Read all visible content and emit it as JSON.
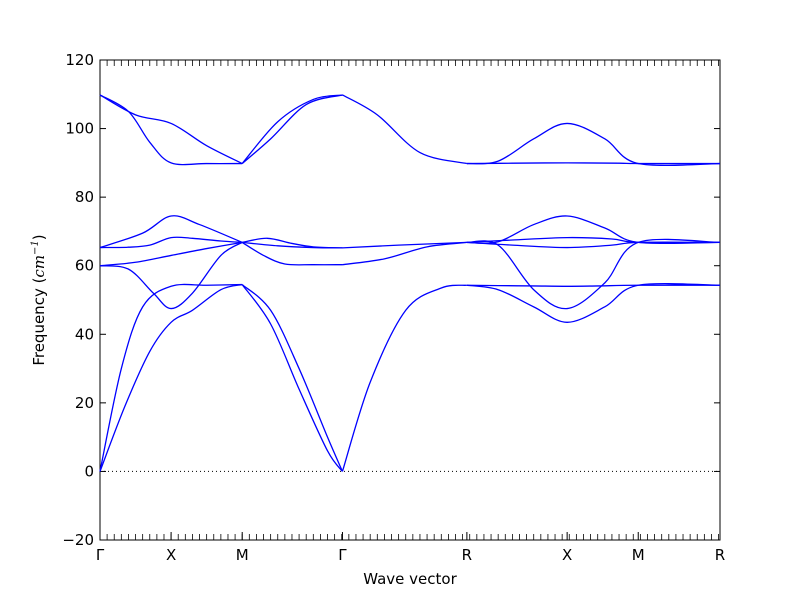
{
  "chart_data": {
    "type": "line",
    "xlabel": "Wave vector",
    "ylabel_main": "Frequency (",
    "ylabel_unit": "cm",
    "ylabel_exp": "−1",
    "ylabel_close": ")",
    "ylim": [
      -20,
      120
    ],
    "yticks": [
      -20,
      0,
      20,
      40,
      60,
      80,
      100,
      120
    ],
    "ytick_labels": [
      "−20",
      "0",
      "20",
      "40",
      "60",
      "80",
      "100",
      "120"
    ],
    "xlim": [
      0,
      8.72
    ],
    "high_symmetry_points": [
      {
        "label": "Γ",
        "x": 0
      },
      {
        "label": "X",
        "x": 1.0
      },
      {
        "label": "M",
        "x": 2.0
      },
      {
        "label": "Γ",
        "x": 3.41
      },
      {
        "label": "R",
        "x": 5.16
      },
      {
        "label": "X",
        "x": 6.57
      },
      {
        "label": "M",
        "x": 7.57
      },
      {
        "label": "R",
        "x": 8.72
      }
    ],
    "zero_line": {
      "y": 0,
      "style": "dotted"
    },
    "line_color": "#0000ff",
    "branches": [
      {
        "x": [
          0,
          0.35,
          0.7,
          1.0,
          1.3,
          1.7,
          2.0
        ],
        "y": [
          0,
          19,
          35,
          43.5,
          47,
          53,
          54.5
        ]
      },
      {
        "x": [
          0,
          0.3,
          0.6,
          1.0,
          1.5,
          2.0
        ],
        "y": [
          0,
          30,
          48,
          54,
          54.3,
          54.5
        ]
      },
      {
        "x": [
          2.0,
          2.4,
          2.8,
          3.2,
          3.41
        ],
        "y": [
          54.5,
          47,
          30,
          10,
          0
        ]
      },
      {
        "x": [
          2.0,
          2.4,
          2.8,
          3.2,
          3.41
        ],
        "y": [
          54.5,
          43,
          24,
          6,
          0
        ]
      },
      {
        "x": [
          3.41,
          3.8,
          4.3,
          4.8,
          5.16
        ],
        "y": [
          0,
          26,
          47,
          53.5,
          54.3
        ]
      },
      {
        "x": [
          5.16,
          5.6,
          6.1,
          6.57,
          7.0,
          7.57,
          8.72
        ],
        "y": [
          54.3,
          54.2,
          54.1,
          54.0,
          54.1,
          54.3,
          54.3
        ]
      },
      {
        "x": [
          5.16,
          5.6,
          6.1,
          6.57,
          7.1,
          7.57,
          8.72
        ],
        "y": [
          54.3,
          53,
          48,
          43.5,
          48,
          54.3,
          54.3
        ]
      },
      {
        "x": [
          0,
          0.4,
          0.75,
          1.0,
          1.3,
          1.7,
          2.0
        ],
        "y": [
          60,
          59,
          52,
          47.5,
          52,
          63,
          66.8
        ]
      },
      {
        "x": [
          0,
          0.5,
          1.0,
          1.5,
          2.0
        ],
        "y": [
          60,
          61,
          63,
          65,
          66.8
        ]
      },
      {
        "x": [
          2.0,
          2.3,
          2.6,
          3.0,
          3.41
        ],
        "y": [
          66.8,
          63,
          60.5,
          60.3,
          60.3
        ]
      },
      {
        "x": [
          2.0,
          2.5,
          3.0,
          3.41
        ],
        "y": [
          66.8,
          65.8,
          65.3,
          65.2
        ]
      },
      {
        "x": [
          2.0,
          2.35,
          2.7,
          3.0,
          3.41
        ],
        "y": [
          66.8,
          68,
          66.5,
          65.5,
          65.2
        ]
      },
      {
        "x": [
          3.41,
          4.0,
          4.6,
          5.16
        ],
        "y": [
          60.3,
          62,
          65.5,
          66.8
        ]
      },
      {
        "x": [
          3.41,
          4.2,
          5.16
        ],
        "y": [
          65.2,
          66,
          66.8
        ]
      },
      {
        "x": [
          5.16,
          5.6,
          6.1,
          6.57,
          7.1,
          7.57,
          8.72
        ],
        "y": [
          66.8,
          66,
          53,
          47.5,
          55,
          66.8,
          66.8
        ]
      },
      {
        "x": [
          5.16,
          5.8,
          6.57,
          7.2,
          7.57,
          8.72
        ],
        "y": [
          66.8,
          67.5,
          68.2,
          67.8,
          66.8,
          66.8
        ]
      },
      {
        "x": [
          5.16,
          5.8,
          6.57,
          7.2,
          7.57,
          8.72
        ],
        "y": [
          66.8,
          66,
          65.3,
          66,
          66.8,
          66.8
        ]
      },
      {
        "x": [
          0,
          0.4,
          0.7,
          1.0,
          1.3,
          1.7,
          2.0
        ],
        "y": [
          65.3,
          65.4,
          66,
          68.2,
          68,
          67.2,
          66.8
        ]
      },
      {
        "x": [
          0,
          0.6,
          1.0,
          1.4,
          2.0
        ],
        "y": [
          65.3,
          69.5,
          74.5,
          72,
          66.8
        ]
      },
      {
        "x": [
          5.16,
          5.6,
          6.1,
          6.57,
          7.1,
          7.57,
          8.72
        ],
        "y": [
          66.8,
          67,
          72,
          74.5,
          71,
          66.8,
          66.8
        ]
      },
      {
        "x": [
          0,
          0.4,
          0.7,
          1.0,
          1.5,
          2.0
        ],
        "y": [
          109.8,
          105,
          96,
          90,
          89.8,
          89.8
        ]
      },
      {
        "x": [
          0,
          0.5,
          1.0,
          1.5,
          2.0
        ],
        "y": [
          109.8,
          104,
          101.5,
          95,
          89.8
        ]
      },
      {
        "x": [
          2.0,
          2.4,
          2.9,
          3.41
        ],
        "y": [
          89.8,
          97,
          107,
          109.8
        ]
      },
      {
        "x": [
          2.0,
          2.5,
          3.0,
          3.41
        ],
        "y": [
          89.8,
          102,
          108.5,
          109.8
        ]
      },
      {
        "x": [
          3.41,
          3.9,
          4.5,
          5.16
        ],
        "y": [
          109.8,
          104,
          93,
          89.8
        ]
      },
      {
        "x": [
          5.16,
          5.8,
          6.57,
          7.3,
          7.57,
          8.72
        ],
        "y": [
          89.8,
          89.9,
          90,
          89.9,
          89.8,
          89.8
        ]
      },
      {
        "x": [
          5.16,
          5.6,
          6.1,
          6.57,
          7.1,
          7.57,
          8.72
        ],
        "y": [
          89.8,
          90.5,
          97,
          101.5,
          97,
          89.8,
          89.8
        ]
      }
    ]
  }
}
